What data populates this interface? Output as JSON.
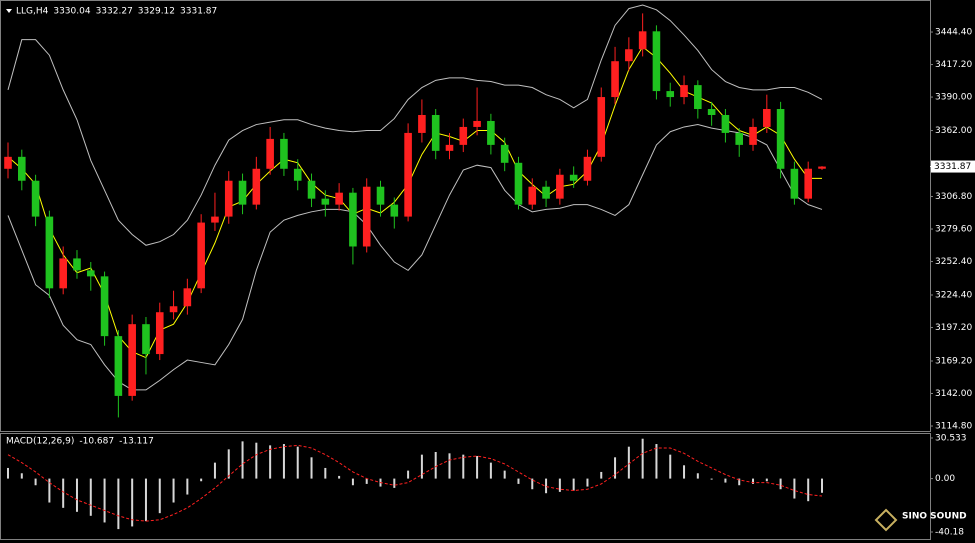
{
  "chart_data": [
    {
      "type": "candlestick",
      "title": "LLG,H4",
      "up_color": "#ff2020",
      "down_color": "#1fc21f",
      "open": [
        3330,
        3340,
        3320,
        3290,
        3230,
        3255,
        3245,
        3240,
        3190,
        3140,
        3200,
        3175,
        3210,
        3215,
        3230,
        3285,
        3290,
        3320,
        3300,
        3330,
        3355,
        3330,
        3320,
        3305,
        3300,
        3310,
        3265,
        3315,
        3300,
        3290,
        3360,
        3375,
        3345,
        3350,
        3365,
        3370,
        3350,
        3335,
        3300,
        3315,
        3305,
        3325,
        3320,
        3340,
        3390,
        3420,
        3430,
        3445,
        3395,
        3390,
        3400,
        3380,
        3375,
        3360,
        3350,
        3365,
        3380,
        3330,
        3305,
        3330.04
      ],
      "high": [
        3352,
        3346,
        3325,
        3295,
        3265,
        3262,
        3252,
        3244,
        3195,
        3208,
        3206,
        3218,
        3228,
        3238,
        3292,
        3310,
        3328,
        3326,
        3340,
        3365,
        3360,
        3338,
        3326,
        3312,
        3318,
        3314,
        3322,
        3320,
        3306,
        3368,
        3388,
        3380,
        3360,
        3372,
        3398,
        3376,
        3356,
        3340,
        3322,
        3320,
        3330,
        3332,
        3346,
        3398,
        3432,
        3440,
        3460,
        3450,
        3402,
        3408,
        3404,
        3386,
        3380,
        3364,
        3372,
        3392,
        3386,
        3336,
        3336,
        3332.27
      ],
      "low": [
        3322,
        3312,
        3282,
        3222,
        3225,
        3238,
        3228,
        3182,
        3122,
        3136,
        3158,
        3170,
        3204,
        3208,
        3226,
        3278,
        3284,
        3292,
        3296,
        3325,
        3324,
        3312,
        3298,
        3290,
        3295,
        3250,
        3260,
        3290,
        3280,
        3286,
        3352,
        3338,
        3338,
        3344,
        3358,
        3342,
        3328,
        3296,
        3296,
        3298,
        3300,
        3314,
        3316,
        3336,
        3384,
        3412,
        3424,
        3388,
        3382,
        3384,
        3372,
        3366,
        3352,
        3340,
        3345,
        3360,
        3322,
        3300,
        3302,
        3329.12
      ],
      "close": [
        3340,
        3320,
        3290,
        3230,
        3255,
        3245,
        3240,
        3190,
        3140,
        3200,
        3175,
        3210,
        3215,
        3230,
        3285,
        3290,
        3320,
        3300,
        3330,
        3355,
        3330,
        3320,
        3305,
        3300,
        3310,
        3265,
        3315,
        3300,
        3290,
        3360,
        3375,
        3345,
        3350,
        3365,
        3370,
        3350,
        3335,
        3300,
        3315,
        3305,
        3325,
        3320,
        3340,
        3390,
        3420,
        3430,
        3445,
        3395,
        3390,
        3400,
        3380,
        3375,
        3360,
        3350,
        3365,
        3380,
        3330,
        3305,
        3330.04,
        3331.87
      ],
      "series": [
        {
          "color": "#c0c0c0",
          "values": [
            3396,
            3438,
            3438,
            3425,
            3396,
            3371,
            3337,
            3312,
            3287,
            3275,
            3266,
            3269,
            3275,
            3287,
            3308,
            3333,
            3354,
            3362,
            3367,
            3369,
            3371,
            3371,
            3367,
            3364,
            3362,
            3361,
            3362,
            3362,
            3372,
            3388,
            3398,
            3404,
            3406,
            3406,
            3404,
            3403,
            3400,
            3400,
            3398,
            3392,
            3388,
            3381,
            3388,
            3421,
            3450,
            3464,
            3467,
            3463,
            3454,
            3442,
            3429,
            3413,
            3403,
            3398,
            3396,
            3396,
            3398,
            3398,
            3394,
            3388
          ]
        },
        {
          "color": "#c0c0c0",
          "values": [
            3291,
            3262,
            3233,
            3224,
            3199,
            3187,
            3183,
            3166,
            3152,
            3145,
            3145,
            3153,
            3162,
            3170,
            3168,
            3166,
            3183,
            3204,
            3245,
            3277,
            3287,
            3291,
            3294,
            3296,
            3296,
            3294,
            3283,
            3266,
            3252,
            3245,
            3258,
            3283,
            3308,
            3329,
            3333,
            3331,
            3312,
            3300,
            3294,
            3296,
            3297,
            3300,
            3300,
            3296,
            3291,
            3300,
            3325,
            3350,
            3361,
            3365,
            3367,
            3364,
            3362,
            3360,
            3356,
            3350,
            3329,
            3308,
            3300,
            3296
          ]
        },
        {
          "color": "#ffff00",
          "values": [
            3340,
            3330,
            3317,
            3280,
            3258,
            3243,
            3247,
            3225,
            3190,
            3177,
            3172,
            3195,
            3200,
            3218,
            3243,
            3268,
            3298,
            3303,
            3317,
            3328,
            3338,
            3335,
            3318,
            3308,
            3305,
            3292,
            3297,
            3293,
            3302,
            3317,
            3342,
            3360,
            3357,
            3353,
            3362,
            3362,
            3352,
            3328,
            3317,
            3307,
            3315,
            3317,
            3328,
            3350,
            3383,
            3413,
            3432,
            3423,
            3410,
            3395,
            3390,
            3385,
            3372,
            3362,
            3358,
            3365,
            3358,
            3338,
            3322,
            3322
          ]
        }
      ],
      "ylim": [
        3109.8,
        3471.2
      ],
      "yticks": [
        {
          "value": 3444.4,
          "label": "3444.40"
        },
        {
          "value": 3417.2,
          "label": "3417.20"
        },
        {
          "value": 3390,
          "label": "3390.00"
        },
        {
          "value": 3362,
          "label": "3362.00"
        },
        {
          "value": 3306.8,
          "label": "3306.80"
        },
        {
          "value": 3279.6,
          "label": "3279.60"
        },
        {
          "value": 3252.4,
          "label": "3252.40"
        },
        {
          "value": 3224.4,
          "label": "3224.40"
        },
        {
          "value": 3197.2,
          "label": "3197.20"
        },
        {
          "value": 3169.2,
          "label": "3169.20"
        },
        {
          "value": 3142,
          "label": "3142.00"
        },
        {
          "value": 3114.8,
          "label": "3114.80"
        }
      ]
    },
    {
      "type": "macd",
      "title": "MACD(12,26,9)",
      "series": [
        {
          "style": "bar",
          "color": "#d8d8d8",
          "values": [
            8,
            4,
            -5,
            -18,
            -22,
            -25,
            -28,
            -33,
            -38,
            -36,
            -32,
            -26,
            -18,
            -12,
            -2,
            12,
            22,
            28,
            27,
            25,
            26,
            24,
            16,
            8,
            2,
            -5,
            -4,
            -6,
            -7,
            6,
            18,
            20,
            19,
            18,
            17,
            12,
            6,
            -4,
            -8,
            -11,
            -10,
            -9,
            -6,
            5,
            16,
            24,
            30,
            26,
            18,
            10,
            4,
            0,
            -3,
            -5,
            -4,
            -2,
            -8,
            -15,
            -17,
            -10.687
          ]
        },
        {
          "style": "dashed",
          "color": "#ff2020",
          "values": [
            18,
            12,
            5,
            -3,
            -10,
            -16,
            -20,
            -24,
            -28,
            -31,
            -32,
            -31,
            -27,
            -22,
            -15,
            -7,
            2,
            11,
            18,
            22,
            24,
            25,
            23,
            18,
            12,
            5,
            0,
            -3,
            -5,
            -3,
            3,
            9,
            14,
            16,
            17,
            15,
            11,
            5,
            -1,
            -6,
            -8,
            -9,
            -8,
            -4,
            3,
            11,
            19,
            23,
            23,
            19,
            13,
            8,
            3,
            -1,
            -3,
            -3,
            -5,
            -9,
            -12,
            -13.117
          ]
        }
      ],
      "ylim": [
        -40.18,
        30.533
      ],
      "yticks": [
        30.533,
        {
          "value": 0,
          "label": "0.00"
        },
        -40.18
      ]
    }
  ],
  "logo": "SINO SOUND"
}
